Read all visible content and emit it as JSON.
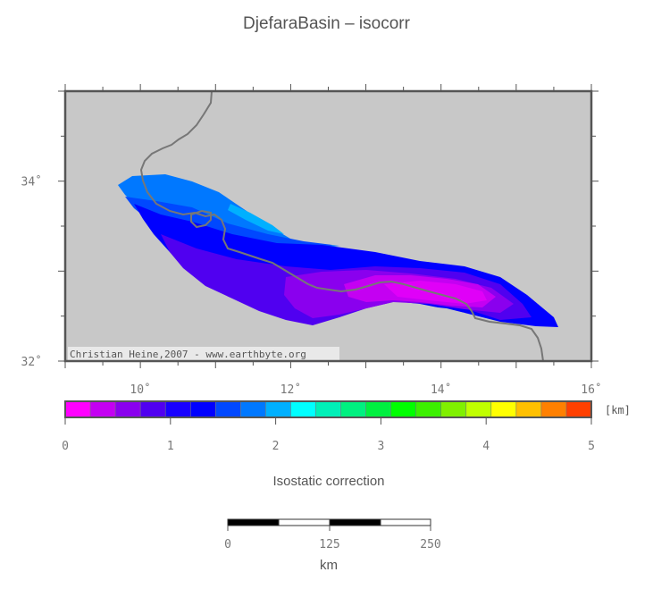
{
  "title": "DjefaraBasin – isocorr",
  "map": {
    "lon_range": [
      9,
      16
    ],
    "lat_range": [
      32,
      35
    ],
    "x_ticks": [
      {
        "value": 10,
        "label": "10˚"
      },
      {
        "value": 12,
        "label": "12˚"
      },
      {
        "value": 14,
        "label": "14˚"
      },
      {
        "value": 16,
        "label": "16˚"
      }
    ],
    "y_ticks": [
      {
        "value": 32,
        "label": "32˚"
      },
      {
        "value": 34,
        "label": "34˚"
      }
    ],
    "credit": "Christian Heine,2007 - www.earthbyte.org",
    "background_color": "#c8c8c8",
    "coastline_color": "#777777"
  },
  "colorbar": {
    "unit": "[km]",
    "min": 0,
    "max": 5,
    "tick_labels": [
      "0",
      "1",
      "2",
      "3",
      "4",
      "5"
    ],
    "colors": [
      "#ff00ff",
      "#c400f2",
      "#8a00ee",
      "#5000f0",
      "#1800ff",
      "#0000ff",
      "#0048ff",
      "#0078ff",
      "#00b0ff",
      "#00ffff",
      "#00f0b8",
      "#00f080",
      "#00f040",
      "#00ff00",
      "#3cf000",
      "#80f000",
      "#c0ff00",
      "#ffff00",
      "#ffc000",
      "#ff8000",
      "#ff4000"
    ],
    "label": "Isostatic correction"
  },
  "scalebar": {
    "tick_labels": [
      "0",
      "125",
      "250"
    ],
    "unit": "km"
  }
}
